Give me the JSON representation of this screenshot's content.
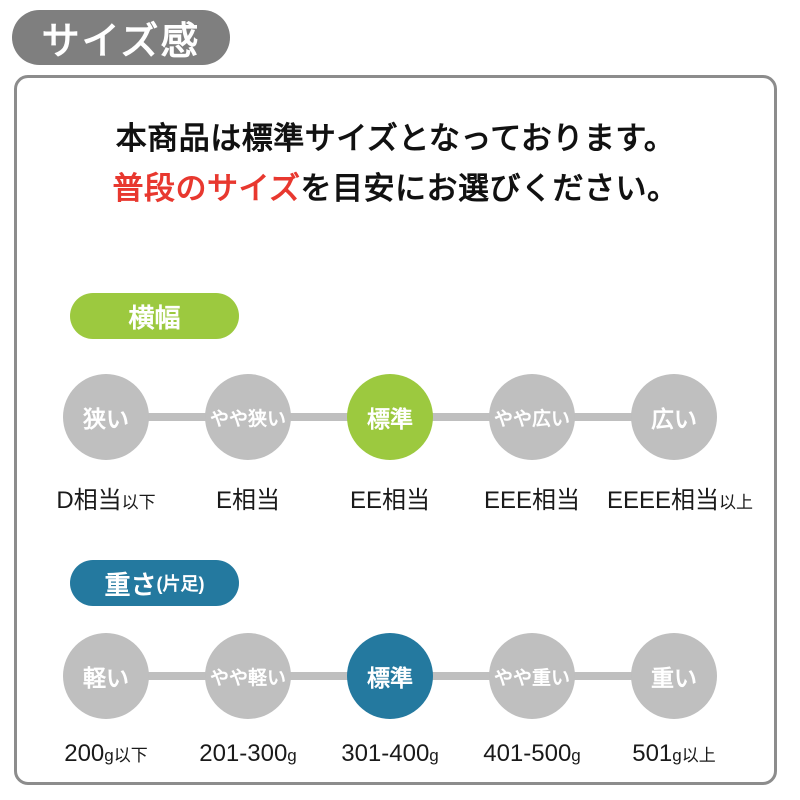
{
  "page_title": "サイズ感",
  "panel": {
    "intro": {
      "line1": "本商品は標準サイズとなっております。",
      "line2_highlight": "普段のサイズ",
      "line2_rest": "を目安にお選びください。"
    },
    "sections": [
      {
        "id": "width",
        "badge_label": "横幅",
        "badge_suffix": "",
        "accent_color": "#9CC93F",
        "steps": [
          {
            "name": "狭い",
            "active": false,
            "value": "D相当",
            "value_suffix": "以下"
          },
          {
            "name": "やや狭い",
            "active": false,
            "value": "E相当",
            "value_suffix": ""
          },
          {
            "name": "標準",
            "active": true,
            "value": "EE相当",
            "value_suffix": ""
          },
          {
            "name": "やや広い",
            "active": false,
            "value": "EEE相当",
            "value_suffix": ""
          },
          {
            "name": "広い",
            "active": false,
            "value": "EEEE相当",
            "value_suffix": "以上"
          }
        ]
      },
      {
        "id": "weight",
        "badge_label": "重さ",
        "badge_suffix": "(片足)",
        "accent_color": "#24799F",
        "steps": [
          {
            "name": "軽い",
            "active": false,
            "value": "200",
            "value_suffix": "g以下"
          },
          {
            "name": "やや軽い",
            "active": false,
            "value": "201-300",
            "value_suffix": "g"
          },
          {
            "name": "標準",
            "active": true,
            "value": "301-400",
            "value_suffix": "g"
          },
          {
            "name": "やや重い",
            "active": false,
            "value": "401-500",
            "value_suffix": "g"
          },
          {
            "name": "重い",
            "active": false,
            "value": "501",
            "value_suffix": "g以上"
          }
        ]
      }
    ]
  },
  "colors": {
    "title_badge_gray": "#7F7F7F",
    "step_circle_gray": "#BFBFBF",
    "accent_green": "#9CC93F",
    "accent_blue": "#24799F",
    "highlight_red": "#E8382F",
    "panel_border_gray": "#8C8C8C",
    "text_black": "#1A1A1A"
  }
}
